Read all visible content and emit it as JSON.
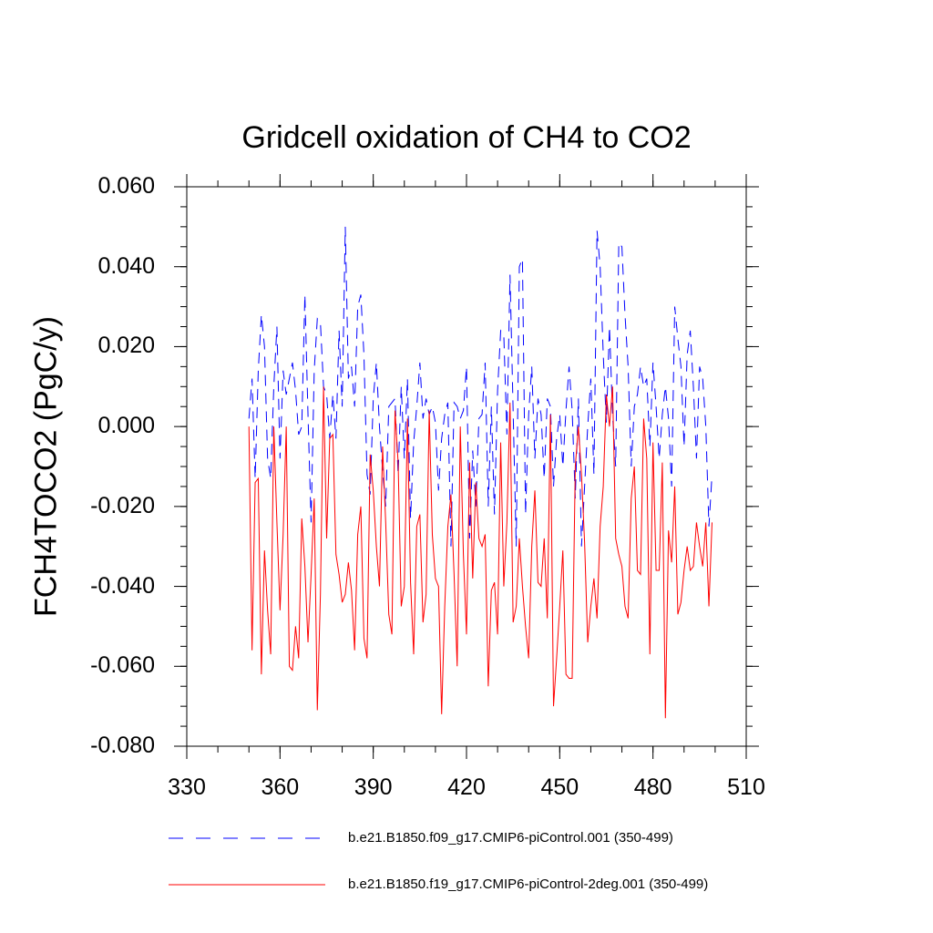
{
  "chart_data": {
    "type": "line",
    "title": "Gridcell oxidation of CH4 to CO2",
    "xlabel": "",
    "ylabel": "FCH4TOCO2  (PgC/y)",
    "xlim": [
      330,
      510
    ],
    "ylim": [
      -0.08,
      0.06
    ],
    "x_ticks": [
      "330",
      "360",
      "390",
      "420",
      "450",
      "480",
      "510"
    ],
    "y_ticks": [
      "0.060",
      "0.040",
      "0.020",
      "0.000",
      "-0.020",
      "-0.040",
      "-0.060",
      "-0.080"
    ],
    "x_start": 350,
    "series": [
      {
        "name": "b.e21.B1850.f09_g17.CMIP6-piControl.001 (350-499)",
        "color": "#0000ff",
        "style": "dashed",
        "values": [
          0.002,
          0.012,
          -0.013,
          0.014,
          0.028,
          0.02,
          -0.008,
          -0.013,
          0.01,
          0.025,
          -0.008,
          0.014,
          0.008,
          0.012,
          0.016,
          0.009,
          -0.002,
          0.0,
          0.033,
          0.003,
          -0.024,
          0.014,
          0.027,
          0.026,
          0.01,
          0.008,
          -0.003,
          0.008,
          -0.003,
          0.024,
          0.005,
          0.05,
          0.012,
          0.015,
          0.005,
          0.03,
          0.033,
          0.018,
          -0.012,
          -0.017,
          0.007,
          0.016,
          0.0,
          -0.011,
          -0.02,
          0.005,
          0.006,
          0.007,
          -0.012,
          0.01,
          -0.008,
          0.012,
          -0.023,
          -0.004,
          0.005,
          0.016,
          0.002,
          0.007,
          0.003,
          0.005,
          0.001,
          -0.016,
          -0.003,
          0.003,
          0.006,
          -0.03,
          0.006,
          0.005,
          0.002,
          0.004,
          0.015,
          -0.028,
          -0.006,
          -0.02,
          0.002,
          0.003,
          0.016,
          -0.02,
          0.005,
          -0.022,
          0.009,
          0.024,
          0.023,
          -0.002,
          0.038,
          0.004,
          -0.03,
          0.04,
          0.042,
          -0.022,
          0.003,
          0.015,
          -0.008,
          0.007,
          0.003,
          -0.013,
          0.007,
          0.005,
          -0.015,
          -0.003,
          0.003,
          -0.01,
          0.004,
          0.015,
          0.004,
          -0.018,
          0.007,
          -0.03,
          -0.015,
          0.0,
          0.012,
          -0.012,
          0.049,
          0.04,
          0.018,
          0.001,
          0.025,
          0.003,
          -0.01,
          0.046,
          0.045,
          0.028,
          0.015,
          -0.01,
          0.005,
          0.008,
          0.015,
          0.01,
          0.012,
          -0.005,
          0.016,
          0.005,
          -0.008,
          0.003,
          0.01,
          0.002,
          -0.015,
          0.03,
          0.022,
          0.015,
          -0.005,
          0.018,
          0.024,
          0.01,
          -0.008,
          0.015,
          0.012,
          0.0,
          -0.025,
          -0.012
        ]
      },
      {
        "name": "b.e21.B1850.f19_g17.CMIP6-piControl-2deg.001 (350-499)",
        "color": "#ff0000",
        "style": "solid",
        "values": [
          0.0,
          -0.056,
          -0.014,
          -0.013,
          -0.062,
          -0.031,
          -0.046,
          -0.057,
          0.0,
          -0.024,
          -0.046,
          -0.027,
          0.0,
          -0.06,
          -0.061,
          -0.05,
          -0.058,
          -0.023,
          -0.035,
          -0.054,
          -0.037,
          -0.018,
          -0.071,
          -0.042,
          0.01,
          -0.028,
          -0.003,
          -0.002,
          -0.032,
          -0.037,
          -0.044,
          -0.042,
          -0.034,
          -0.041,
          -0.056,
          -0.027,
          -0.02,
          -0.053,
          -0.058,
          -0.007,
          -0.016,
          -0.03,
          -0.04,
          -0.005,
          -0.024,
          -0.047,
          -0.052,
          0.004,
          -0.009,
          -0.045,
          -0.04,
          0.002,
          -0.039,
          -0.057,
          -0.025,
          -0.022,
          -0.049,
          -0.042,
          0.004,
          -0.027,
          -0.038,
          -0.04,
          -0.072,
          -0.045,
          -0.025,
          -0.017,
          -0.037,
          -0.06,
          0.0,
          -0.032,
          -0.052,
          -0.009,
          -0.038,
          -0.014,
          -0.028,
          -0.03,
          -0.027,
          -0.065,
          -0.041,
          -0.039,
          -0.052,
          -0.004,
          -0.04,
          -0.024,
          0.006,
          -0.049,
          -0.045,
          -0.028,
          -0.04,
          -0.05,
          -0.058,
          -0.03,
          -0.016,
          -0.039,
          -0.04,
          -0.028,
          -0.048,
          0.003,
          -0.07,
          -0.058,
          -0.045,
          -0.031,
          -0.062,
          -0.063,
          -0.063,
          -0.01,
          0.0,
          -0.012,
          -0.029,
          -0.054,
          -0.045,
          -0.038,
          -0.048,
          -0.025,
          -0.015,
          0.008,
          0.0,
          0.01,
          -0.028,
          -0.032,
          -0.035,
          -0.045,
          -0.048,
          -0.018,
          -0.01,
          -0.036,
          -0.037,
          0.002,
          -0.008,
          -0.057,
          -0.004,
          -0.036,
          -0.036,
          -0.009,
          -0.073,
          -0.026,
          -0.034,
          -0.015,
          -0.047,
          -0.044,
          -0.036,
          -0.03,
          -0.036,
          -0.035,
          -0.024,
          -0.03,
          -0.035,
          -0.024,
          -0.045,
          -0.024
        ]
      }
    ],
    "legend_position": "bottom"
  }
}
